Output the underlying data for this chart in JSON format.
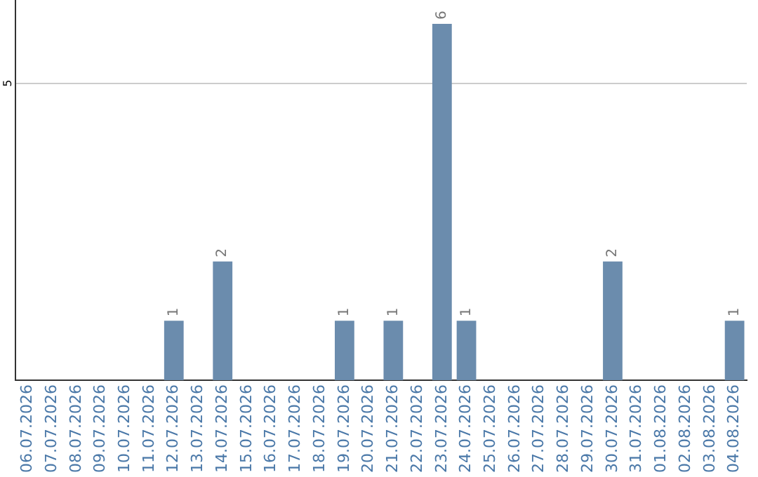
{
  "chart_data": {
    "type": "bar",
    "categories": [
      "06.07.2026",
      "07.07.2026",
      "08.07.2026",
      "09.07.2026",
      "10.07.2026",
      "11.07.2026",
      "12.07.2026",
      "13.07.2026",
      "14.07.2026",
      "15.07.2026",
      "16.07.2026",
      "17.07.2026",
      "18.07.2026",
      "19.07.2026",
      "20.07.2026",
      "21.07.2026",
      "22.07.2026",
      "23.07.2026",
      "24.07.2026",
      "25.07.2026",
      "26.07.2026",
      "27.07.2026",
      "28.07.2026",
      "29.07.2026",
      "30.07.2026",
      "31.07.2026",
      "01.08.2026",
      "02.08.2026",
      "03.08.2026",
      "04.08.2026"
    ],
    "values": [
      0,
      0,
      0,
      0,
      0,
      0,
      1,
      0,
      2,
      0,
      0,
      0,
      0,
      1,
      0,
      1,
      0,
      6,
      1,
      0,
      0,
      0,
      0,
      0,
      2,
      0,
      0,
      0,
      0,
      1
    ],
    "value_labels": [
      null,
      null,
      null,
      null,
      null,
      null,
      "1",
      null,
      "2",
      null,
      null,
      null,
      null,
      "1",
      null,
      "1",
      null,
      "6",
      "1",
      null,
      null,
      null,
      null,
      null,
      "2",
      null,
      null,
      null,
      null,
      "1"
    ],
    "color": "#6b8cad",
    "ylim": [
      0,
      6.4
    ],
    "yticks": [
      5
    ],
    "grid": "y",
    "legend": false
  }
}
